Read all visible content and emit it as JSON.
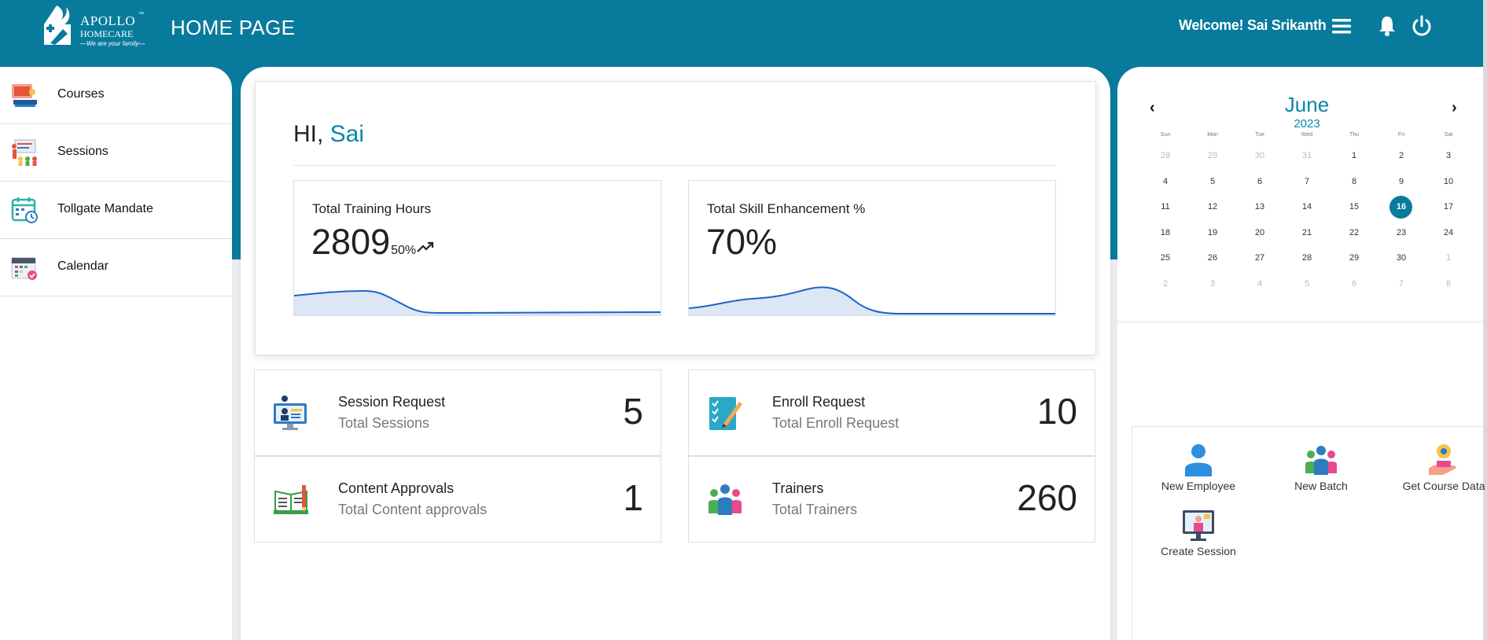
{
  "header": {
    "logo": {
      "name": "APOLLO",
      "tm": "™",
      "sub": "HOMECARE",
      "tagline": "—We are your family—"
    },
    "page_title": "HOME PAGE",
    "welcome": "Welcome! Sai Srikanth",
    "icons": [
      "menu-icon",
      "bell-icon",
      "power-icon"
    ],
    "bg_color": "#087b9d"
  },
  "sidebar": {
    "items": [
      {
        "label": "Courses",
        "icon": "courses-icon"
      },
      {
        "label": "Sessions",
        "icon": "sessions-icon"
      },
      {
        "label": "Tollgate Mandate",
        "icon": "tollgate-calendar-icon"
      },
      {
        "label": "Calendar",
        "icon": "calendar-icon"
      }
    ]
  },
  "greeting": {
    "prefix": "HI, ",
    "name": "Sai"
  },
  "stats": [
    {
      "title": "Total Training Hours",
      "value": "2809",
      "change": "50%",
      "trend_icon": "trending-up-icon"
    },
    {
      "title": "Total Skill Enhancement %",
      "value": "70%"
    }
  ],
  "cards": [
    {
      "title": "Session Request",
      "subtitle": "Total Sessions",
      "count": "5",
      "icon": "session-request-icon"
    },
    {
      "title": "Enroll Request",
      "subtitle": "Total Enroll Request",
      "count": "10",
      "icon": "enroll-request-icon"
    },
    {
      "title": "Content Approvals",
      "subtitle": "Total Content approvals",
      "count": "1",
      "icon": "content-approvals-icon"
    },
    {
      "title": "Trainers",
      "subtitle": "Total Trainers",
      "count": "260",
      "icon": "trainers-icon"
    }
  ],
  "calendar": {
    "month": "June",
    "year": "2023",
    "prev": "‹",
    "next": "›",
    "weekdays": [
      "Sun",
      "Mon",
      "Tue",
      "Wed",
      "Thu",
      "Fri",
      "Sat"
    ],
    "weeks": [
      [
        "28",
        "29",
        "30",
        "31",
        "1",
        "2",
        "3"
      ],
      [
        "4",
        "5",
        "6",
        "7",
        "8",
        "9",
        "10"
      ],
      [
        "11",
        "12",
        "13",
        "14",
        "15",
        "16",
        "17"
      ],
      [
        "18",
        "19",
        "20",
        "21",
        "22",
        "23",
        "24"
      ],
      [
        "25",
        "26",
        "27",
        "28",
        "29",
        "30",
        "1"
      ],
      [
        "2",
        "3",
        "4",
        "5",
        "6",
        "7",
        "8"
      ]
    ],
    "selected": "16",
    "accent": "#0a86a9"
  },
  "quick_actions": [
    {
      "label": "New Employee",
      "icon": "new-employee-icon"
    },
    {
      "label": "New Batch",
      "icon": "new-batch-icon"
    },
    {
      "label": "Get Course Data",
      "icon": "get-course-data-icon"
    },
    {
      "label": "Create Session",
      "icon": "create-session-icon"
    }
  ]
}
